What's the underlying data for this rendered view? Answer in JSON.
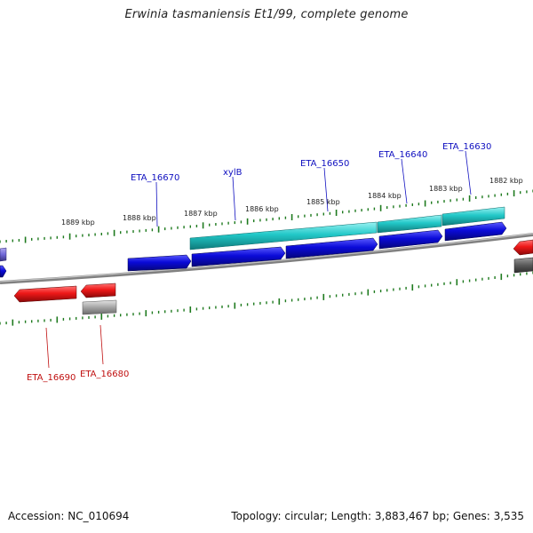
{
  "title": "Erwinia tasmaniensis Et1/99, complete genome",
  "footer": {
    "accession": "Accession: NC_010694",
    "topology": "Topology: circular; Length: 3,883,467 bp; Genes: 3,535"
  },
  "scale_labels": [
    "1889 kbp",
    "1888 kbp",
    "1887 kbp",
    "1886 kbp",
    "1885 kbp",
    "1884 kbp",
    "1883 kbp",
    "1882 kbp"
  ],
  "gene_labels": {
    "forward": [
      "ETA_16670",
      "xylB",
      "ETA_16650",
      "ETA_16640",
      "ETA_16630"
    ],
    "reverse": [
      "ETA_16690",
      "ETA_16680"
    ]
  },
  "colors": {
    "forward_label": "#1010c0",
    "reverse_label": "#c01010",
    "cds_blue": "#0a0ad8",
    "gene_cyan": "#22c8c8",
    "gene_red": "#ee1818",
    "gene_grey": "#a8a8a8",
    "tick_green": "#1e7a1e",
    "backbone": "#808080"
  }
}
